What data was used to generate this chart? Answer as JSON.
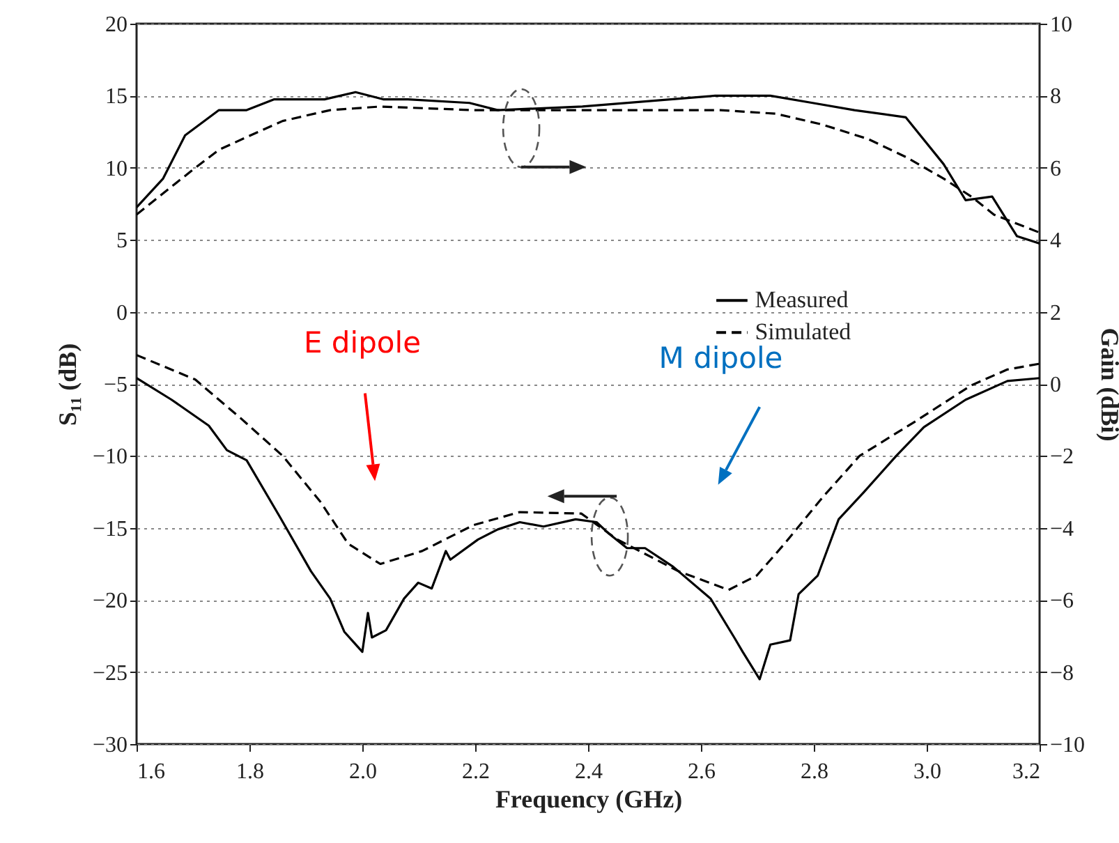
{
  "chart_data": {
    "type": "line",
    "xlabel": "Frequency (GHz)",
    "ylabel": "S₁₁ (dB)",
    "y2label": "Gain (dBi)",
    "xlim": [
      1.6,
      3.2
    ],
    "xticks": [
      1.6,
      1.8,
      {
        "value": 2,
        "label": "2.0"
      },
      2.2,
      2.4,
      2.6,
      2.8,
      {
        "value": 3,
        "label": "3.0"
      },
      3.2
    ],
    "ylim": [
      -30,
      20
    ],
    "yticks": [
      -30,
      -25,
      -20,
      -15,
      -10,
      -5,
      0,
      5,
      10,
      15,
      20
    ],
    "y2lim": [
      -10,
      10
    ],
    "y2ticks": [
      -10,
      -8,
      -6,
      -4,
      -2,
      0,
      2,
      4,
      6,
      8,
      10
    ],
    "grid": "y",
    "legend": "right",
    "annotations": [
      "E dipole",
      "M dipole"
    ],
    "series": [
      {
        "name": "Measured",
        "color": "#000000",
        "line_style": "solid",
        "x": [
          1.6,
          1.662,
          1.728,
          1.76,
          1.795,
          1.852,
          1.909,
          1.943,
          1.968,
          2.0,
          2.01,
          2.017,
          2.042,
          2.074,
          2.099,
          2.123,
          2.148,
          2.156,
          2.205,
          2.24,
          2.279,
          2.321,
          2.378,
          2.415,
          2.437,
          2.469,
          2.501,
          2.551,
          2.617,
          2.659,
          2.674,
          2.704,
          2.723,
          2.758,
          2.773,
          2.807,
          2.844,
          2.889,
          2.946,
          2.995,
          3.069,
          3.143,
          3.2
        ],
        "values": [
          -4.6,
          -6.1,
          -7.9,
          -9.6,
          -10.3,
          -14.1,
          -18.0,
          -19.9,
          -22.2,
          -23.6,
          -20.9,
          -22.6,
          -22.1,
          -19.9,
          -18.8,
          -19.2,
          -16.6,
          -17.2,
          -15.8,
          -15.1,
          -14.6,
          -14.9,
          -14.4,
          -14.6,
          -15.4,
          -16.4,
          -16.4,
          -17.7,
          -19.9,
          -22.6,
          -23.6,
          -25.5,
          -23.1,
          -22.8,
          -19.6,
          -18.3,
          -14.4,
          -12.5,
          -10.0,
          -8.0,
          -6.1,
          -4.8,
          -4.6
        ]
      },
      {
        "name": "Simulated",
        "color": "#000000",
        "line_style": "dashed",
        "x": [
          1.6,
          1.704,
          1.785,
          1.859,
          1.926,
          1.975,
          2.032,
          2.106,
          2.197,
          2.279,
          2.388,
          2.452,
          2.56,
          2.649,
          2.699,
          2.748,
          2.815,
          2.881,
          2.98,
          3.079,
          3.143,
          3.2
        ],
        "values": [
          -3.0,
          -4.7,
          -7.4,
          -10.0,
          -13.2,
          -16.1,
          -17.5,
          -16.6,
          -14.8,
          -13.9,
          -14.0,
          -15.8,
          -18.0,
          -19.3,
          -18.3,
          -16.1,
          -12.9,
          -10.0,
          -7.6,
          -5.1,
          -4.0,
          -3.6
        ]
      },
      {
        "color": "#000000",
        "line_style": "solid",
        "axis": "y2",
        "x": [
          1.6,
          1.647,
          1.686,
          1.746,
          1.795,
          1.844,
          1.933,
          1.988,
          2.037,
          2.081,
          2.19,
          2.24,
          2.39,
          2.625,
          2.723,
          2.798,
          2.872,
          2.963,
          3.03,
          3.069,
          3.116,
          3.16,
          3.2
        ],
        "values": [
          4.9,
          5.7,
          6.9,
          7.6,
          7.6,
          7.9,
          7.9,
          8.1,
          7.9,
          7.9,
          7.8,
          7.6,
          7.7,
          8.0,
          8.0,
          7.8,
          7.6,
          7.4,
          6.1,
          5.1,
          5.2,
          4.1,
          3.9
        ]
      },
      {
        "color": "#000000",
        "line_style": "dashed",
        "axis": "y2",
        "x": [
          1.6,
          1.696,
          1.746,
          1.802,
          1.859,
          1.943,
          2.032,
          2.197,
          2.395,
          2.635,
          2.733,
          2.815,
          2.896,
          2.963,
          3.03,
          3.079,
          3.119,
          3.2
        ],
        "values": [
          4.7,
          5.9,
          6.5,
          6.9,
          7.3,
          7.6,
          7.7,
          7.6,
          7.6,
          7.6,
          7.5,
          7.2,
          6.8,
          6.3,
          5.7,
          5.2,
          4.7,
          4.2
        ]
      }
    ]
  }
}
